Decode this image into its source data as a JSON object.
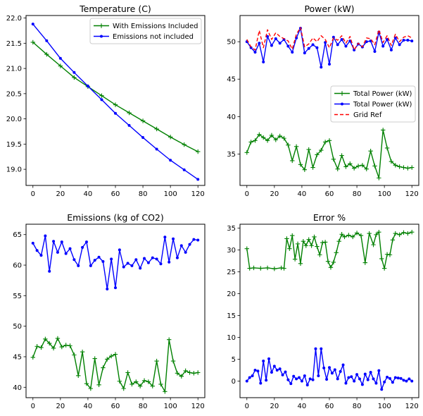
{
  "figure": {
    "background": "#ffffff"
  },
  "chart_data": [
    {
      "type": "line",
      "title": "Temperature (C)",
      "xlabel": "",
      "ylabel": "",
      "xlim": [
        -5,
        125
      ],
      "ylim": [
        18.68,
        22.05
      ],
      "xticks": [
        0,
        20,
        40,
        60,
        80,
        100,
        120
      ],
      "yticks": [
        19.0,
        19.5,
        20.0,
        20.5,
        21.0,
        21.5,
        22.0
      ],
      "ytick_decimals": 1,
      "grid": false,
      "legend": "top-right",
      "legend_entries": [
        0,
        1
      ],
      "series": [
        {
          "name": "With Emissions Included",
          "color": "#008000",
          "marker": "plus",
          "linestyle": "solid",
          "x": [
            0,
            10,
            20,
            30,
            40,
            50,
            60,
            70,
            80,
            90,
            100,
            110,
            120
          ],
          "y": [
            21.52,
            21.28,
            21.05,
            20.82,
            20.64,
            20.46,
            20.28,
            20.12,
            19.96,
            19.8,
            19.64,
            19.49,
            19.35
          ]
        },
        {
          "name": "Emissions not included",
          "color": "#0000ff",
          "marker": "dot",
          "linestyle": "solid",
          "x": [
            0,
            10,
            20,
            30,
            40,
            50,
            60,
            70,
            80,
            90,
            100,
            110,
            120
          ],
          "y": [
            21.88,
            21.55,
            21.2,
            20.92,
            20.65,
            20.38,
            20.11,
            19.87,
            19.63,
            19.4,
            19.18,
            18.99,
            18.8
          ]
        }
      ]
    },
    {
      "type": "line",
      "title": "Power (kW)",
      "xlabel": "",
      "ylabel": "",
      "xlim": [
        -5,
        125
      ],
      "ylim": [
        30.8,
        53.5
      ],
      "xticks": [
        0,
        20,
        40,
        60,
        80,
        100,
        120
      ],
      "yticks": [
        35,
        40,
        45,
        50
      ],
      "ytick_decimals": 0,
      "grid": false,
      "legend": "center-right",
      "legend_entries": [
        0,
        1,
        2
      ],
      "series": [
        {
          "name": "Total Power (kW)",
          "color": "#008000",
          "marker": "plus",
          "linestyle": "solid",
          "x": [
            0,
            3,
            6,
            9,
            12,
            15,
            18,
            21,
            24,
            27,
            30,
            33,
            36,
            39,
            42,
            45,
            48,
            51,
            54,
            57,
            60,
            63,
            66,
            69,
            72,
            75,
            78,
            81,
            84,
            87,
            90,
            93,
            96,
            99,
            102,
            105,
            108,
            111,
            114,
            117,
            120
          ],
          "y": [
            35.2,
            36.6,
            36.8,
            37.6,
            37.2,
            36.8,
            37.5,
            36.9,
            37.4,
            37.1,
            36.2,
            34.1,
            36.0,
            33.6,
            32.9,
            35.6,
            33.2,
            34.9,
            35.5,
            36.6,
            36.8,
            34.3,
            33.0,
            34.8,
            33.3,
            33.7,
            33.1,
            33.4,
            33.5,
            33.0,
            35.4,
            33.4,
            31.8,
            38.2,
            35.8,
            34.0,
            33.5,
            33.3,
            33.2,
            33.1,
            33.2
          ]
        },
        {
          "name": "Total Power (kW)",
          "color": "#0000ff",
          "marker": "dot",
          "linestyle": "solid",
          "x": [
            0,
            3,
            6,
            9,
            12,
            15,
            18,
            21,
            24,
            27,
            30,
            33,
            36,
            39,
            42,
            45,
            48,
            51,
            54,
            57,
            60,
            63,
            66,
            69,
            72,
            75,
            78,
            81,
            84,
            87,
            90,
            93,
            96,
            99,
            102,
            105,
            108,
            111,
            114,
            117,
            120
          ],
          "y": [
            50.0,
            49.2,
            48.6,
            49.8,
            47.3,
            50.7,
            49.5,
            50.4,
            49.8,
            50.3,
            49.4,
            48.6,
            50.5,
            51.8,
            48.5,
            49.1,
            49.6,
            49.2,
            46.6,
            49.9,
            47.0,
            50.6,
            49.6,
            50.3,
            49.4,
            50.1,
            48.9,
            49.7,
            49.3,
            50.0,
            50.1,
            48.7,
            51.3,
            49.4,
            50.3,
            48.9,
            50.5,
            49.6,
            50.2,
            50.2,
            50.1
          ]
        },
        {
          "name": "Grid Ref",
          "color": "#ff0000",
          "marker": "none",
          "linestyle": "dashed",
          "x": [
            0,
            3,
            6,
            9,
            12,
            15,
            18,
            21,
            24,
            27,
            30,
            33,
            36,
            39,
            42,
            45,
            48,
            51,
            54,
            57,
            60,
            63,
            66,
            69,
            72,
            75,
            78,
            81,
            84,
            87,
            90,
            93,
            96,
            99,
            102,
            105,
            108,
            111,
            114,
            117,
            120
          ],
          "y": [
            50.3,
            49.3,
            48.9,
            51.5,
            49.2,
            51.6,
            50.3,
            51.2,
            50.7,
            50.4,
            50.1,
            49.0,
            51.0,
            51.9,
            49.3,
            49.7,
            50.5,
            50.0,
            50.8,
            50.3,
            49.2,
            50.5,
            50.2,
            50.8,
            49.8,
            50.7,
            48.9,
            49.8,
            49.3,
            50.5,
            50.4,
            49.6,
            51.6,
            49.9,
            50.8,
            49.5,
            51.0,
            50.0,
            50.6,
            50.8,
            50.5
          ]
        }
      ]
    },
    {
      "type": "line",
      "title": "Emissions (kg of CO2)",
      "xlabel": "",
      "ylabel": "",
      "xlim": [
        -5,
        125
      ],
      "ylim": [
        38.3,
        66.7
      ],
      "xticks": [
        0,
        20,
        40,
        60,
        80,
        100,
        120
      ],
      "yticks": [
        40,
        45,
        50,
        55,
        60,
        65
      ],
      "ytick_decimals": 0,
      "grid": false,
      "legend": "none",
      "legend_entries": [],
      "series": [
        {
          "name": "",
          "color": "#008000",
          "marker": "plus",
          "linestyle": "solid",
          "x": [
            0,
            3,
            6,
            9,
            12,
            15,
            18,
            21,
            24,
            27,
            30,
            33,
            36,
            39,
            42,
            45,
            48,
            51,
            54,
            57,
            60,
            63,
            66,
            69,
            72,
            75,
            78,
            81,
            84,
            87,
            90,
            93,
            96,
            99,
            102,
            105,
            108,
            111,
            114,
            117,
            120
          ],
          "y": [
            44.9,
            46.7,
            46.5,
            47.9,
            47.2,
            46.4,
            48.0,
            46.6,
            46.9,
            46.8,
            45.3,
            41.9,
            45.8,
            40.6,
            39.8,
            44.7,
            40.4,
            43.2,
            44.6,
            45.1,
            45.4,
            41.0,
            39.8,
            42.4,
            40.5,
            40.9,
            40.2,
            41.1,
            40.9,
            40.2,
            44.3,
            40.5,
            39.3,
            47.8,
            44.3,
            42.3,
            41.8,
            42.7,
            42.4,
            42.3,
            42.4
          ]
        },
        {
          "name": "",
          "color": "#0000ff",
          "marker": "dot",
          "linestyle": "solid",
          "x": [
            0,
            3,
            6,
            9,
            12,
            15,
            18,
            21,
            24,
            27,
            30,
            33,
            36,
            39,
            42,
            45,
            48,
            51,
            54,
            57,
            60,
            63,
            66,
            69,
            72,
            75,
            78,
            81,
            84,
            87,
            90,
            93,
            96,
            99,
            102,
            105,
            108,
            111,
            114,
            117,
            120
          ],
          "y": [
            63.6,
            62.4,
            61.6,
            64.8,
            59.0,
            63.9,
            62.1,
            63.8,
            61.9,
            62.7,
            60.9,
            59.9,
            62.9,
            63.8,
            59.9,
            60.8,
            61.3,
            60.6,
            56.1,
            61.0,
            56.3,
            62.5,
            59.7,
            60.3,
            59.9,
            60.9,
            59.5,
            61.1,
            60.4,
            61.2,
            61.0,
            60.2,
            64.6,
            60.5,
            64.3,
            61.2,
            63.2,
            62.1,
            63.4,
            64.2,
            64.1
          ]
        }
      ]
    },
    {
      "type": "line",
      "title": "Error %",
      "xlabel": "",
      "ylabel": "",
      "xlim": [
        -5,
        125
      ],
      "ylim": [
        -3.8,
        35.9
      ],
      "xticks": [
        0,
        20,
        40,
        60,
        80,
        100,
        120
      ],
      "yticks": [
        0,
        5,
        10,
        15,
        20,
        25,
        30,
        35
      ],
      "ytick_decimals": 0,
      "grid": false,
      "legend": "none",
      "legend_entries": [],
      "series": [
        {
          "name": "",
          "color": "#008000",
          "marker": "plus",
          "linestyle": "solid",
          "x": [
            0,
            2,
            5,
            10,
            15,
            20,
            25,
            27,
            29,
            31,
            33,
            35,
            37,
            39,
            41,
            43,
            45,
            47,
            49,
            51,
            53,
            55,
            57,
            59,
            61,
            63,
            65,
            67,
            69,
            71,
            74,
            77,
            80,
            83,
            86,
            89,
            92,
            94,
            96,
            98,
            100,
            102,
            104,
            106,
            108,
            111,
            114,
            117,
            120
          ],
          "y": [
            30.3,
            25.8,
            25.9,
            25.8,
            25.9,
            25.7,
            25.9,
            25.8,
            32.6,
            30.3,
            33.3,
            27.9,
            31.4,
            26.9,
            32.0,
            31.0,
            32.4,
            31.0,
            33.0,
            30.8,
            28.9,
            31.7,
            31.8,
            27.4,
            26.0,
            27.2,
            29.4,
            32.0,
            33.6,
            33.0,
            33.4,
            33.0,
            33.9,
            33.3,
            27.1,
            33.8,
            31.2,
            33.5,
            34.1,
            28.0,
            25.8,
            29.0,
            28.9,
            32.3,
            33.8,
            33.5,
            34.0,
            33.8,
            34.1
          ]
        },
        {
          "name": "",
          "color": "#0000ff",
          "marker": "dot",
          "linestyle": "solid",
          "x": [
            0,
            2,
            4,
            6,
            8,
            10,
            12,
            14,
            16,
            18,
            20,
            22,
            24,
            26,
            28,
            30,
            32,
            34,
            36,
            38,
            40,
            42,
            44,
            46,
            48,
            50,
            52,
            54,
            56,
            58,
            60,
            62,
            64,
            66,
            68,
            70,
            72,
            74,
            76,
            78,
            80,
            82,
            84,
            86,
            88,
            90,
            92,
            94,
            96,
            98,
            100,
            102,
            104,
            106,
            108,
            110,
            112,
            114,
            116,
            118,
            120
          ],
          "y": [
            0.0,
            0.8,
            1.2,
            2.5,
            2.3,
            -0.5,
            4.6,
            0.2,
            5.1,
            2.0,
            3.4,
            2.5,
            2.8,
            1.4,
            2.1,
            0.3,
            -0.6,
            1.1,
            0.5,
            0.8,
            0.0,
            1.2,
            -0.9,
            0.5,
            0.3,
            7.4,
            1.2,
            7.4,
            3.0,
            0.4,
            3.1,
            1.8,
            2.6,
            0.5,
            2.2,
            3.7,
            -0.5,
            0.8,
            1.0,
            0.0,
            1.5,
            0.5,
            -0.8,
            1.6,
            0.3,
            2.0,
            0.5,
            -0.5,
            2.4,
            -1.9,
            -0.2,
            0.9,
            0.6,
            -0.3,
            0.8,
            0.7,
            0.6,
            0.2,
            0.0,
            0.5,
            0.0
          ]
        }
      ]
    }
  ]
}
